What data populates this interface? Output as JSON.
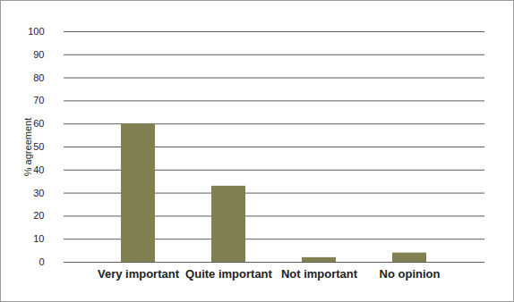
{
  "chart_data": {
    "type": "bar",
    "y_label": "% agreement",
    "categories": [
      "Very important",
      "Quite important",
      "Not important",
      "No opinion"
    ],
    "values": [
      60,
      33,
      2,
      4
    ],
    "color": "#808050",
    "ylim": [
      0,
      100
    ],
    "yticks": [
      0,
      10,
      20,
      30,
      40,
      50,
      60,
      70,
      80,
      90,
      100
    ],
    "grid": true
  }
}
